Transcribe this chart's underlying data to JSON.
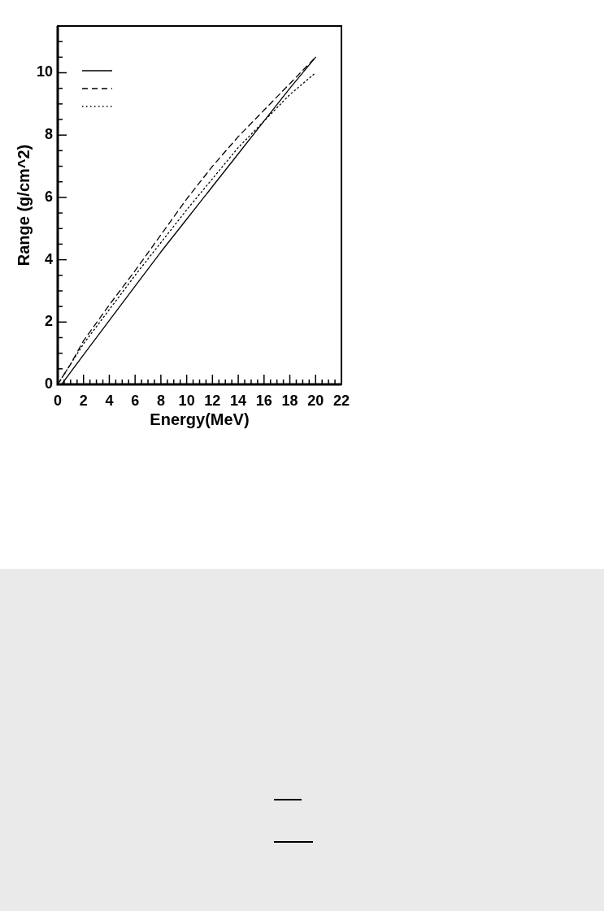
{
  "chart_data": {
    "type": "line",
    "xlabel": "Energy(MeV)",
    "ylabel": "Range (g/cm^2)",
    "xlim": [
      0,
      22
    ],
    "ylim": [
      0,
      11.5
    ],
    "xticks": [
      0,
      {
        "value": 0.5,
        "label": null
      },
      {
        "value": 1,
        "label": null
      },
      {
        "value": 1.5,
        "label": null
      },
      2,
      {
        "value": 2.5,
        "label": null
      },
      {
        "value": 3,
        "label": null
      },
      {
        "value": 3.5,
        "label": null
      },
      4,
      {
        "value": 4.5,
        "label": null
      },
      {
        "value": 5,
        "label": null
      },
      {
        "value": 5.5,
        "label": null
      },
      6,
      {
        "value": 6.5,
        "label": null
      },
      {
        "value": 7,
        "label": null
      },
      {
        "value": 7.5,
        "label": null
      },
      8,
      {
        "value": 8.5,
        "label": null
      },
      {
        "value": 9,
        "label": null
      },
      {
        "value": 9.5,
        "label": null
      },
      10,
      {
        "value": 10.5,
        "label": null
      },
      {
        "value": 11,
        "label": null
      },
      {
        "value": 11.5,
        "label": null
      },
      12,
      {
        "value": 12.5,
        "label": null
      },
      {
        "value": 13,
        "label": null
      },
      {
        "value": 13.5,
        "label": null
      },
      14,
      {
        "value": 14.5,
        "label": null
      },
      {
        "value": 15,
        "label": null
      },
      {
        "value": 15.5,
        "label": null
      },
      16,
      {
        "value": 16.5,
        "label": null
      },
      {
        "value": 17,
        "label": null
      },
      {
        "value": 17.5,
        "label": null
      },
      18,
      {
        "value": 18.5,
        "label": null
      },
      {
        "value": 19,
        "label": null
      },
      {
        "value": 19.5,
        "label": null
      },
      20,
      {
        "value": 20.5,
        "label": null
      },
      {
        "value": 21,
        "label": null
      },
      {
        "value": 21.5,
        "label": null
      },
      22
    ],
    "yticks": [
      0,
      {
        "value": 0.5,
        "label": null
      },
      {
        "value": 1,
        "label": null
      },
      {
        "value": 1.5,
        "label": null
      },
      2,
      {
        "value": 2.5,
        "label": null
      },
      {
        "value": 3,
        "label": null
      },
      {
        "value": 3.5,
        "label": null
      },
      4,
      {
        "value": 4.5,
        "label": null
      },
      {
        "value": 5,
        "label": null
      },
      {
        "value": 5.5,
        "label": null
      },
      6,
      {
        "value": 6.5,
        "label": null
      },
      {
        "value": 7,
        "label": null
      },
      {
        "value": 7.5,
        "label": null
      },
      8,
      {
        "value": 8.5,
        "label": null
      },
      {
        "value": 9,
        "label": null
      },
      {
        "value": 9.5,
        "label": null
      },
      10,
      {
        "value": 10.5,
        "label": null
      },
      {
        "value": 11,
        "label": null
      }
    ],
    "grid": false,
    "marker": "none",
    "series": [
      {
        "color": "#000000",
        "line_style": "solid",
        "x": [
          0.3,
          2,
          4,
          6,
          8,
          10,
          12,
          14,
          16,
          18,
          20
        ],
        "values": [
          0,
          0.95,
          2.05,
          3.15,
          4.25,
          5.3,
          6.35,
          7.4,
          8.45,
          9.5,
          10.5
        ]
      },
      {
        "color": "#000000",
        "line_style": "dashed",
        "x": [
          0,
          1,
          2,
          4,
          6,
          8,
          10,
          12,
          14,
          16,
          18,
          20
        ],
        "values": [
          0,
          0.65,
          1.4,
          2.55,
          3.65,
          4.8,
          5.95,
          7.0,
          7.95,
          8.8,
          9.65,
          10.5
        ]
      },
      {
        "color": "#000000",
        "line_style": "dotted",
        "x": [
          0,
          2,
          4,
          6,
          8,
          10,
          12,
          14,
          16,
          18,
          20
        ],
        "values": [
          0,
          1.3,
          2.4,
          3.5,
          4.55,
          5.6,
          6.6,
          7.6,
          8.45,
          9.3,
          10.0
        ]
      }
    ]
  }
}
